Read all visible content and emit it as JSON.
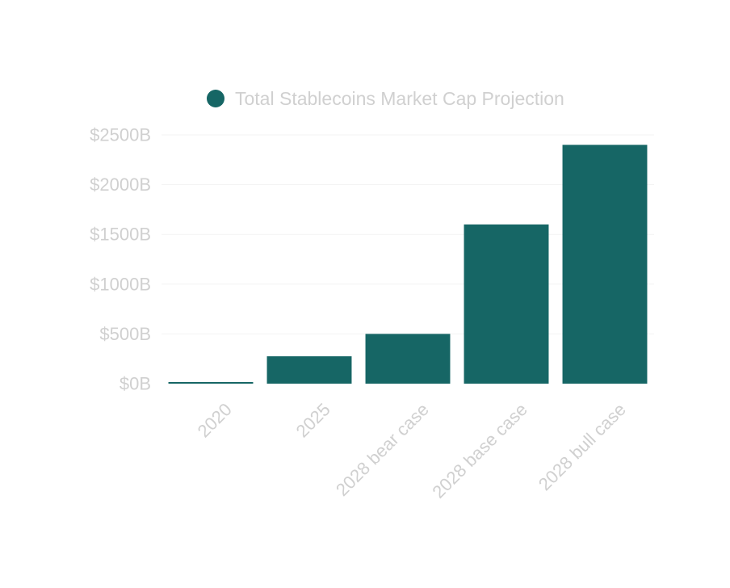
{
  "chart_data": {
    "type": "bar",
    "title": "",
    "xlabel": "",
    "ylabel": "",
    "categories": [
      "2020",
      "2025",
      "2028 bear case",
      "2028 base case",
      "2028 bull case"
    ],
    "series": [
      {
        "name": "Total Stablecoins Market Cap Projection",
        "values": [
          15,
          275,
          500,
          1600,
          2400
        ],
        "color": "#166665"
      }
    ],
    "ylim": [
      0,
      2500
    ],
    "yticks": [
      0,
      500,
      1000,
      1500,
      2000,
      2500
    ],
    "ytick_labels": [
      "$0B",
      "$500B",
      "$1000B",
      "$1500B",
      "$2000B",
      "$2500B"
    ],
    "grid": true,
    "legend_position": "top-center",
    "colors": {
      "bar": "#166665",
      "text": "#d0d0d0",
      "grid": "#f3f3f3"
    }
  }
}
